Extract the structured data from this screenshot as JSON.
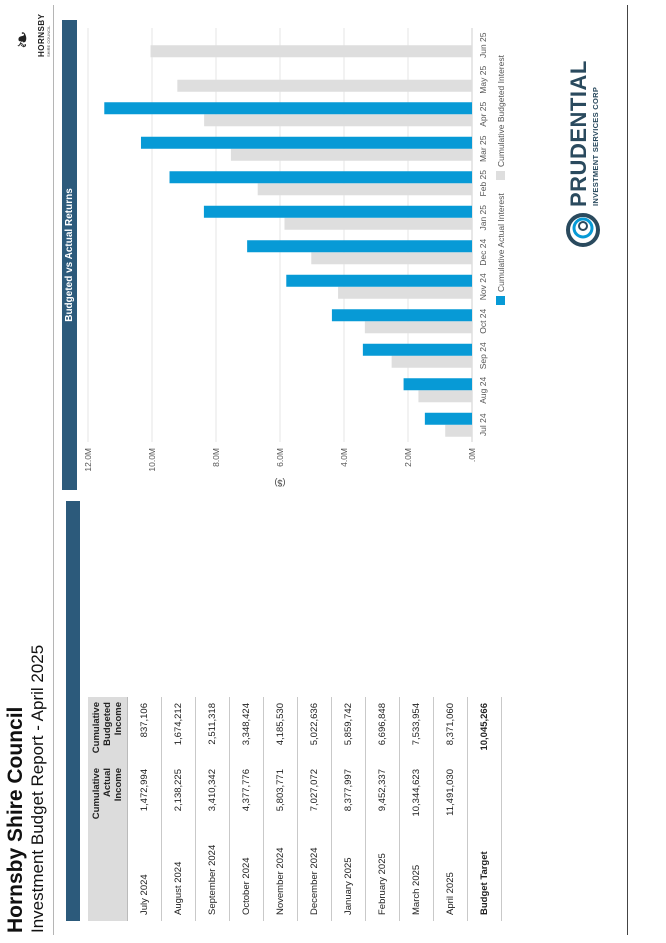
{
  "header": {
    "title": "Hornsby Shire Council",
    "subtitle": "Investment Budget Report - April 2025"
  },
  "logos": {
    "council_word": "HORNSBY",
    "council_sub": "SHIRE COUNCIL",
    "prudential_name": "PRUDENTIAL",
    "prudential_tag": "INVESTMENT SERVICES CORP"
  },
  "table": {
    "headers": [
      "",
      "Cumulative Actual Income",
      "Cumulative Budgeted Income"
    ],
    "rows": [
      {
        "month": "July 2024",
        "actual": "1,472,994",
        "budgeted": "837,106"
      },
      {
        "month": "August 2024",
        "actual": "2,138,225",
        "budgeted": "1,674,212"
      },
      {
        "month": "September 2024",
        "actual": "3,410,342",
        "budgeted": "2,511,318"
      },
      {
        "month": "October 2024",
        "actual": "4,377,776",
        "budgeted": "3,348,424"
      },
      {
        "month": "November 2024",
        "actual": "5,803,771",
        "budgeted": "4,185,530"
      },
      {
        "month": "December 2024",
        "actual": "7,027,072",
        "budgeted": "5,022,636"
      },
      {
        "month": "January 2025",
        "actual": "8,377,997",
        "budgeted": "5,859,742"
      },
      {
        "month": "February 2025",
        "actual": "9,452,337",
        "budgeted": "6,696,848"
      },
      {
        "month": "March 2025",
        "actual": "10,344,623",
        "budgeted": "7,533,954"
      },
      {
        "month": "April 2025",
        "actual": "11,491,030",
        "budgeted": "8,371,060"
      }
    ],
    "target_label": "Budget Target",
    "target_value": "10,045,266"
  },
  "colors": {
    "actual": "#079ad6",
    "budgeted": "#dedede",
    "banner": "#2c5a7b"
  },
  "chart_data": {
    "type": "bar",
    "title": "Budgeted vs Actual Returns",
    "ylabel": "($)",
    "xlabel": "",
    "categories": [
      "Jul 24",
      "Aug 24",
      "Sep 24",
      "Oct 24",
      "Nov 24",
      "Dec 24",
      "Jan 25",
      "Feb 25",
      "Mar 25",
      "Apr 25",
      "May 25",
      "Jun 25"
    ],
    "series": [
      {
        "name": "Cumulative Actual Interest",
        "values": [
          1472994,
          2138225,
          3410342,
          4377776,
          5803771,
          7027072,
          8377997,
          9452337,
          10344623,
          11491030,
          null,
          null
        ]
      },
      {
        "name": "Cumulative Budgeted Interest",
        "values": [
          837106,
          1674212,
          2511318,
          3348424,
          4185530,
          5022636,
          5859742,
          6696848,
          7533954,
          8371060,
          9208166,
          10045266
        ]
      }
    ],
    "ylim": [
      0,
      12000000
    ],
    "yticks": [
      0,
      2000000,
      4000000,
      6000000,
      8000000,
      10000000,
      12000000
    ],
    "ytick_labels": [
      ".0M",
      "2.0M",
      "4.0M",
      "6.0M",
      "8.0M",
      "10.0M",
      "12.0M"
    ],
    "grid": true,
    "legend": "bottom"
  }
}
